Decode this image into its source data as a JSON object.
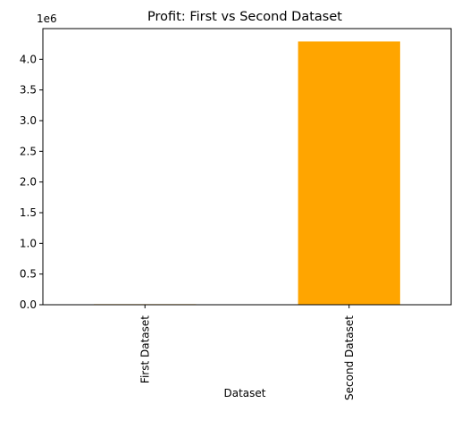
{
  "chart_data": {
    "type": "bar",
    "title": "Profit: First vs Second Dataset",
    "xlabel": "Dataset",
    "ylabel": "",
    "categories": [
      "First Dataset",
      "Second Dataset"
    ],
    "values": [
      9000,
      4290000
    ],
    "colors": [
      "#FFA500",
      "#FFA500"
    ],
    "ylim": [
      0,
      4500000
    ],
    "yticks": [
      0,
      500000,
      1000000,
      1500000,
      2000000,
      2500000,
      3000000,
      3500000,
      4000000
    ],
    "ytick_labels": [
      "0.0",
      "0.5",
      "1.0",
      "1.5",
      "2.0",
      "2.5",
      "3.0",
      "3.5",
      "4.0"
    ],
    "y_offset_text": "1e6",
    "grid": false,
    "legend": false
  }
}
